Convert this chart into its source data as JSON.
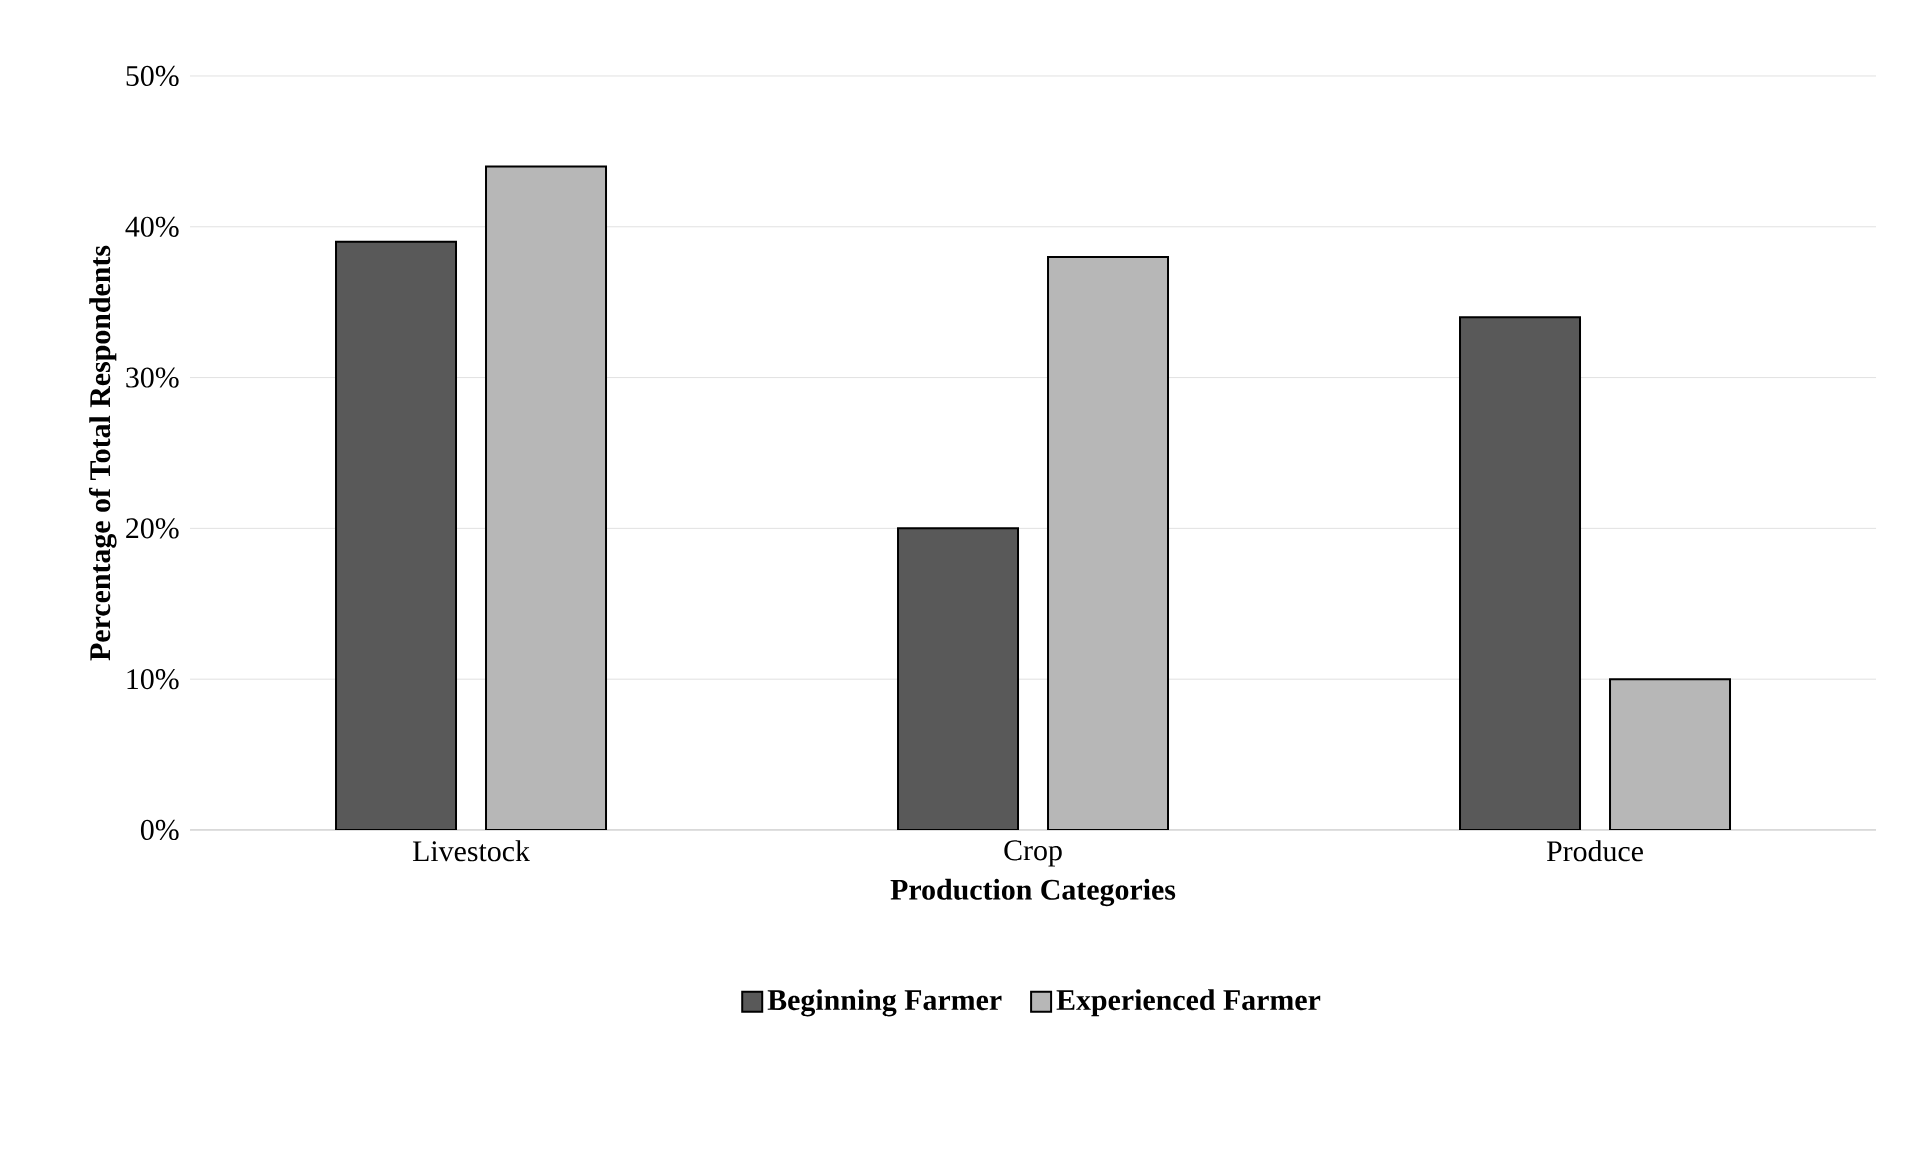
{
  "chart_data": {
    "type": "bar",
    "xlabel": "Production Categories",
    "ylabel": "Percentage of Total Respondents",
    "categories": [
      "Livestock",
      "Crop",
      "Produce"
    ],
    "series": [
      {
        "name": "Beginning Farmer",
        "color": "#595959",
        "values": [
          39,
          20,
          34
        ]
      },
      {
        "name": "Experienced Farmer",
        "color": "#b7b7b7",
        "values": [
          44,
          38,
          10
        ]
      }
    ],
    "ylim": [
      0,
      50
    ],
    "yticks": [
      {
        "value": 0,
        "label": "0%"
      },
      {
        "value": 10,
        "label": "10%"
      },
      {
        "value": 20,
        "label": "20%"
      },
      {
        "value": 30,
        "label": "30%"
      },
      {
        "value": 40,
        "label": "40%"
      },
      {
        "value": 50,
        "label": "50%"
      }
    ],
    "grid": "y",
    "legend": "bottom"
  }
}
